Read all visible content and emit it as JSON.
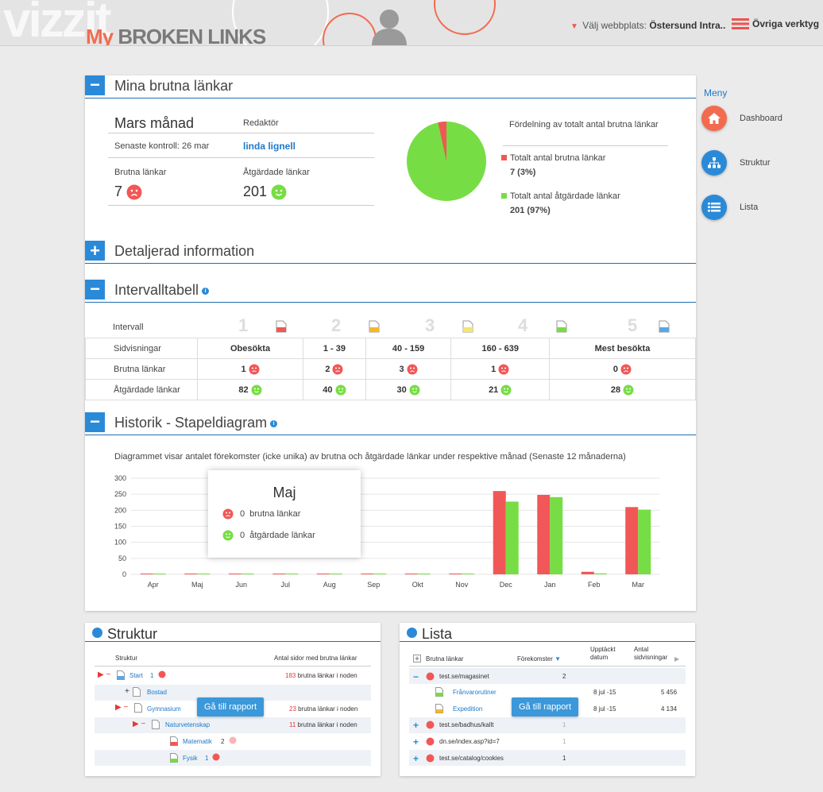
{
  "header": {
    "logo_bg": "vizzit",
    "brand_my": "My",
    "brand_rest": "BROKEN LINKS",
    "site_label": "Välj webbplats:",
    "site_value": "Östersund Intra..",
    "tools_label": "Övriga verktyg"
  },
  "colors": {
    "broken": "#f25757",
    "fixed": "#77dd44",
    "accent": "#2a8ad8",
    "brand": "#f26b4f"
  },
  "sections": {
    "my_links": "Mina brutna länkar",
    "details": "Detaljerad information",
    "interval": "Intervalltabell",
    "history": "Historik - Stapeldiagram"
  },
  "summary": {
    "month": "Mars månad",
    "editor_label": "Redaktör",
    "last_check": "Senaste kontroll: 26 mar",
    "editor_name": "linda lignell",
    "broken_label": "Brutna länkar",
    "broken_value": "7",
    "fixed_label": "Åtgärdade länkar",
    "fixed_value": "201"
  },
  "distribution": {
    "title": "Fördelning av totalt antal brutna länkar",
    "broken_label": "Totalt antal brutna länkar",
    "broken_value": "7 (3%)",
    "fixed_label": "Totalt antal åtgärdade länkar",
    "fixed_value": "201 (97%)",
    "broken_share": 0.034
  },
  "interval_table": {
    "interval_label": "Intervall",
    "numbers": [
      "1",
      "2",
      "3",
      "4",
      "5"
    ],
    "row_labels": [
      "Sidvisningar",
      "Brutna länkar",
      "Åtgärdade länkar"
    ],
    "pageviews": [
      "Obesökta",
      "1 - 39",
      "40 - 159",
      "160 - 639",
      "Mest besökta"
    ],
    "broken": [
      "1",
      "2",
      "3",
      "1",
      "0"
    ],
    "fixed": [
      "82",
      "40",
      "30",
      "21",
      "28"
    ]
  },
  "history": {
    "description": "Diagrammet visar antalet förekomster (icke unika) av brutna och åtgärdade länkar under respektive månad (Senaste 12 månaderna)",
    "tooltip": {
      "title": "Maj",
      "broken": "0  brutna länkar",
      "fixed": "0  åtgärdade länkar"
    }
  },
  "chart_data": {
    "type": "bar",
    "title": "",
    "xlabel": "",
    "ylabel": "",
    "categories": [
      "Apr",
      "Maj",
      "Jun",
      "Jul",
      "Aug",
      "Sep",
      "Okt",
      "Nov",
      "Dec",
      "Jan",
      "Feb",
      "Mar"
    ],
    "series": [
      {
        "name": "Brutna länkar",
        "color": "#f25757",
        "values": [
          0,
          0,
          0,
          0,
          0,
          0,
          0,
          0,
          260,
          248,
          8,
          210
        ]
      },
      {
        "name": "Åtgärdade länkar",
        "color": "#77dd44",
        "values": [
          0,
          0,
          0,
          0,
          0,
          0,
          0,
          0,
          227,
          241,
          3,
          202
        ]
      }
    ],
    "ylim": [
      0,
      300
    ],
    "yticks": [
      "0",
      "50",
      "100",
      "150",
      "200",
      "250",
      "300"
    ],
    "grid": true
  },
  "menu": {
    "title": "Meny",
    "items": [
      {
        "label": "Dashboard",
        "icon": "home-icon",
        "color": "#f26b4f"
      },
      {
        "label": "Struktur",
        "icon": "sitemap-icon",
        "color": "#2a8ad8"
      },
      {
        "label": "Lista",
        "icon": "list-icon",
        "color": "#2a8ad8"
      }
    ]
  },
  "struktur_panel": {
    "title": "Struktur",
    "col1": "Struktur",
    "col2": "Antal sidor med brutna länkar",
    "rows": [
      {
        "name": "Start",
        "count": "1",
        "info_num": "183",
        "info_text": "brutna länkar i noden"
      },
      {
        "name": "Bostad",
        "count": "",
        "info_num": "",
        "info_text": ""
      },
      {
        "name": "Gymnasium",
        "count": "",
        "info_num": "23",
        "info_text": "brutna länkar i noden"
      },
      {
        "name": "Naturvetenskap",
        "count": "",
        "info_num": "11",
        "info_text": "brutna länkar i noden"
      },
      {
        "name": "Matematik",
        "count": "2",
        "info_num": "",
        "info_text": ""
      },
      {
        "name": "Fysik",
        "count": "1",
        "info_num": "",
        "info_text": ""
      }
    ],
    "button": "Gå till rapport"
  },
  "lista_panel": {
    "title": "Lista",
    "col1": "Brutna länkar",
    "col2": "Förekomster",
    "col3": "Upptäckt datum",
    "col4": "Antal sidvisningar",
    "rows": [
      {
        "name": "test.se/magasinet",
        "count": "2",
        "date": "",
        "views": ""
      },
      {
        "name": "Frånvarorutiner",
        "count": "",
        "date": "8 jul -15",
        "views": "5 456"
      },
      {
        "name": "Expedition",
        "count": "",
        "date": "8 jul -15",
        "views": "4 134"
      },
      {
        "name": "test.se/badhus/kallt",
        "count": "1",
        "date": "",
        "views": ""
      },
      {
        "name": "dn.se/index.asp?id=7",
        "count": "1",
        "date": "",
        "views": ""
      },
      {
        "name": "test.se/catalog/cookies",
        "count": "1",
        "date": "",
        "views": ""
      }
    ],
    "button": "Gå till rapport"
  }
}
